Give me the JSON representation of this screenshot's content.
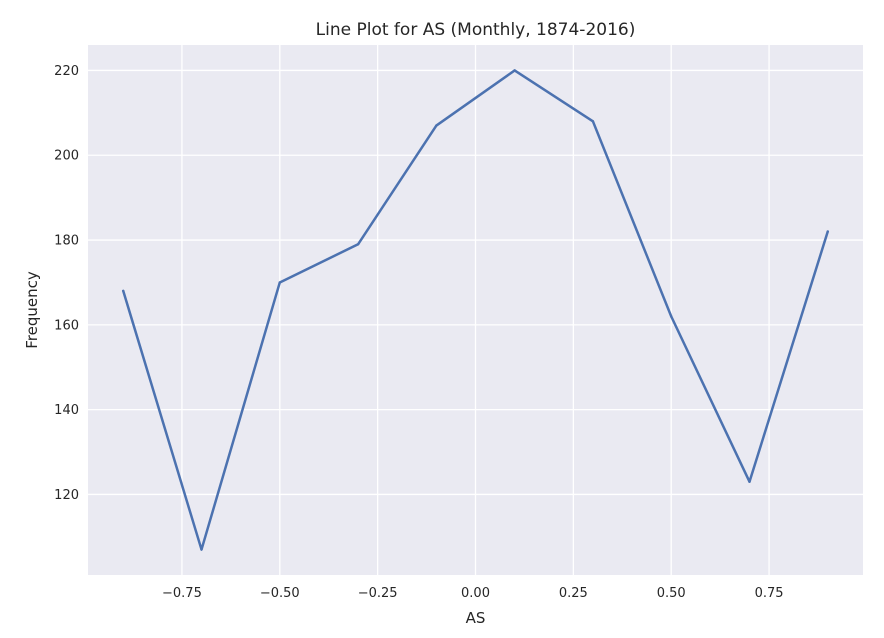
{
  "chart_data": {
    "type": "line",
    "title": "Line Plot for AS (Monthly, 1874-2016)",
    "xlabel": "AS",
    "ylabel": "Frequency",
    "x": [
      -0.9,
      -0.7,
      -0.5,
      -0.3,
      -0.1,
      0.1,
      0.3,
      0.5,
      0.7,
      0.9
    ],
    "series": [
      {
        "values": [
          168,
          107,
          170,
          179,
          207,
          220,
          208,
          162,
          123,
          182
        ]
      }
    ],
    "xlim": [
      -0.99,
      0.99
    ],
    "ylim": [
      101,
      226
    ],
    "xticks": [
      -0.75,
      -0.5,
      -0.25,
      0.0,
      0.25,
      0.5,
      0.75
    ],
    "xtick_labels": [
      "−0.75",
      "−0.50",
      "−0.25",
      "0.00",
      "0.25",
      "0.50",
      "0.75"
    ],
    "yticks": [
      120,
      140,
      160,
      180,
      200,
      220
    ],
    "ytick_labels": [
      "120",
      "140",
      "160",
      "180",
      "200",
      "220"
    ],
    "grid": true,
    "colors": {
      "background": "#EAEAF2",
      "grid": "#FFFFFF",
      "line": "#4C72B0",
      "text": "#262626"
    }
  }
}
